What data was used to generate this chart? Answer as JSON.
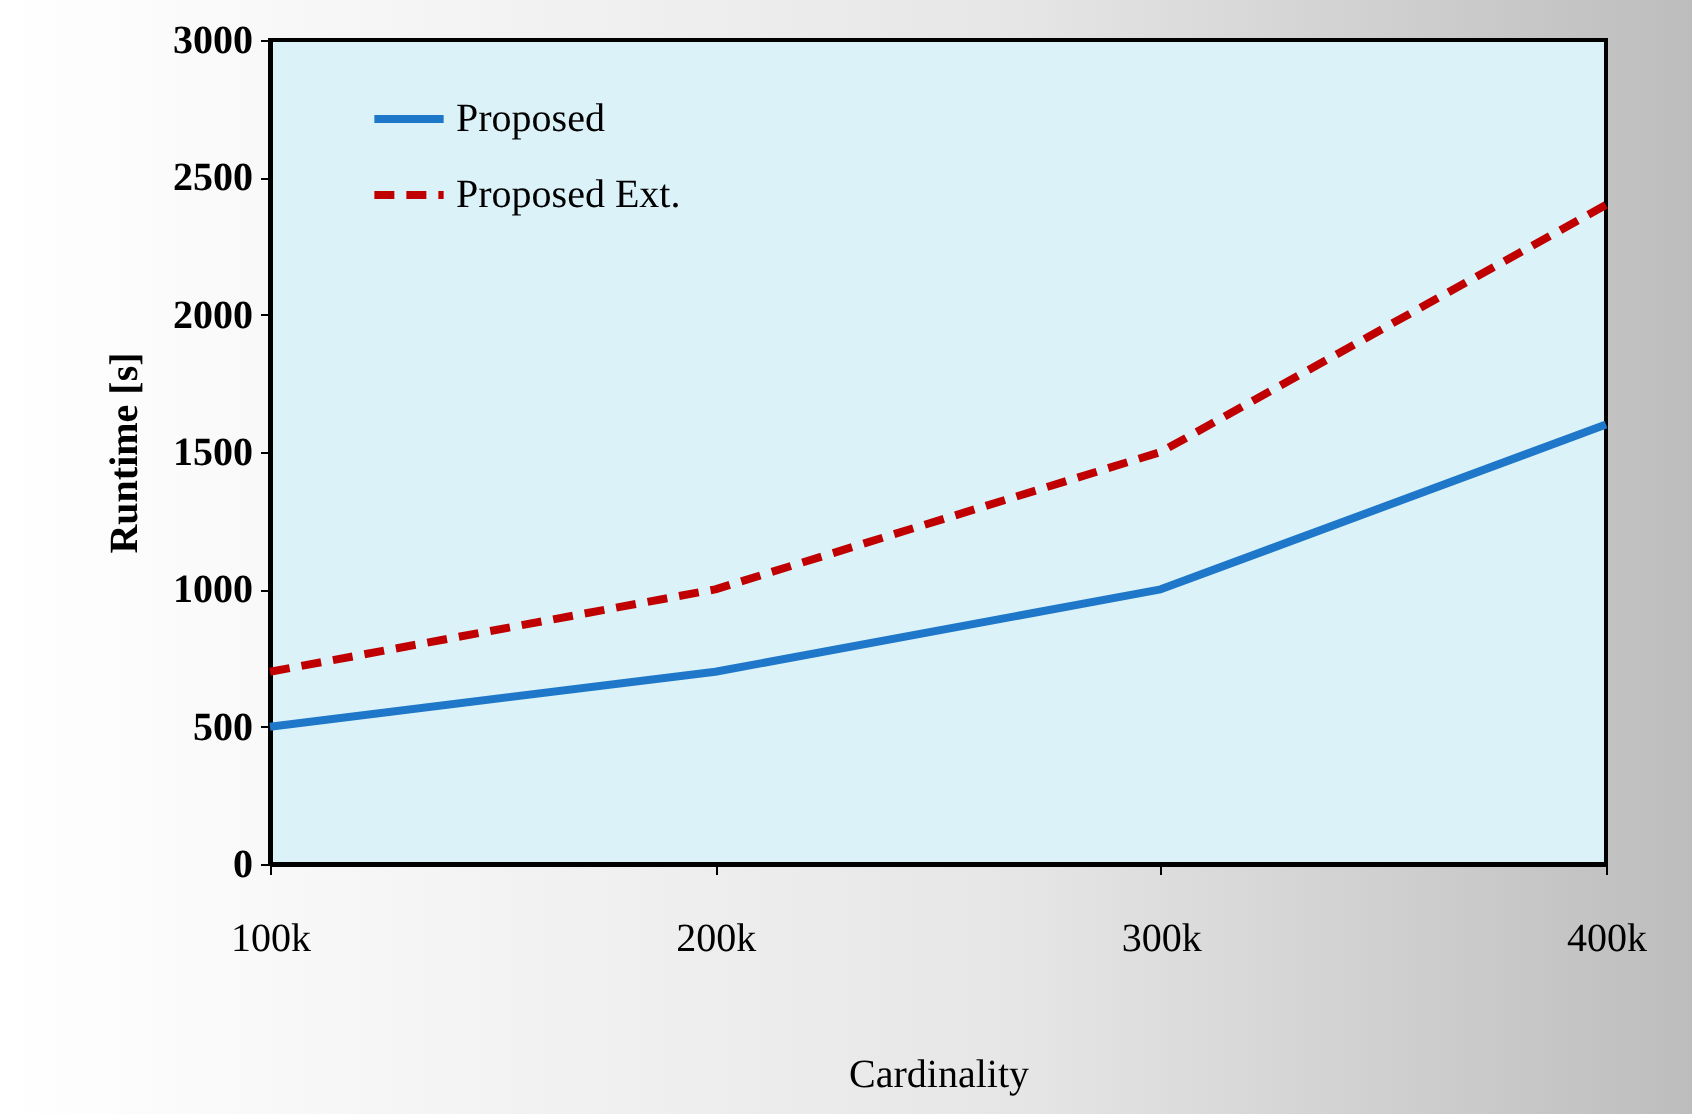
{
  "chart_data": {
    "type": "line",
    "xlabel": "Cardinality",
    "ylabel": "Runtime [s]",
    "categories": [
      "100k",
      "200k",
      "300k",
      "400k"
    ],
    "series": [
      {
        "name": "Proposed",
        "color": "#1f77c9",
        "line_style": "solid",
        "values": [
          500,
          700,
          1000,
          1600
        ]
      },
      {
        "name": "Proposed Ext.",
        "color": "#c00000",
        "line_style": "dashed",
        "values": [
          700,
          1000,
          1500,
          2400
        ]
      }
    ],
    "ylim": [
      0,
      3000
    ],
    "yticks": [
      0,
      500,
      1000,
      1500,
      2000,
      2500,
      3000
    ],
    "grid": false,
    "legend": "top left",
    "marker": "none"
  }
}
